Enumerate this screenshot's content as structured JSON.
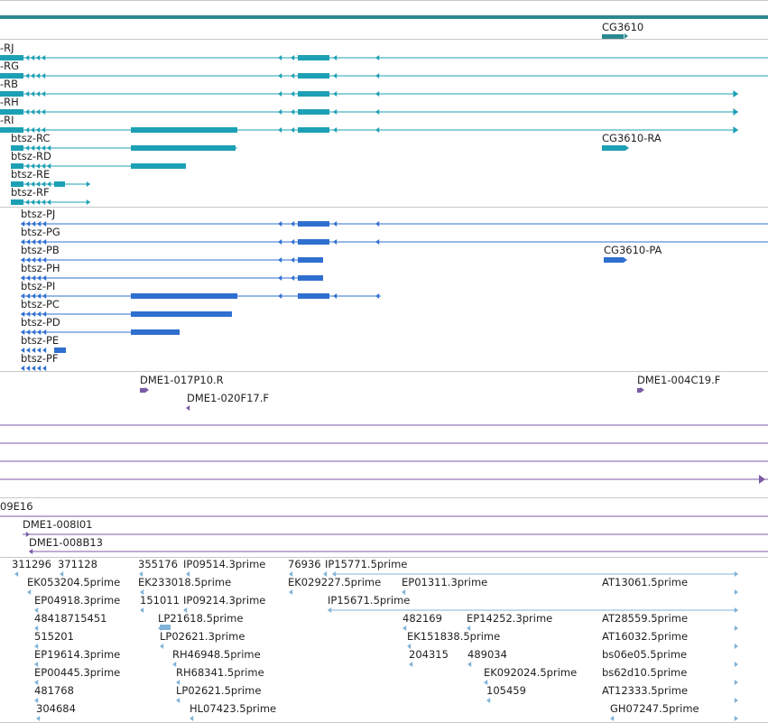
{
  "colors": {
    "teal": "#1ca0b4",
    "teal_dark": "#2a8890",
    "blue": "#2f6fd0",
    "purple": "#7b5aa6",
    "light_blue": "#7fb3d8",
    "separator": "#c8c8c8"
  },
  "top_track": {
    "label": "CG3610"
  },
  "btsz_r_track": {
    "rows": [
      {
        "label": "-RJ"
      },
      {
        "label": "-RG"
      },
      {
        "label": "-RB"
      },
      {
        "label": "-RH"
      },
      {
        "label": "-RI"
      },
      {
        "label": "btsz-RC"
      },
      {
        "label": "btsz-RD"
      },
      {
        "label": "btsz-RE"
      },
      {
        "label": "btsz-RF"
      }
    ],
    "extra_label": "CG3610-RA"
  },
  "btsz_p_track": {
    "rows": [
      {
        "label": "btsz-PJ"
      },
      {
        "label": "btsz-PG"
      },
      {
        "label": "btsz-PB"
      },
      {
        "label": "btsz-PH"
      },
      {
        "label": "btsz-PI"
      },
      {
        "label": "btsz-PC"
      },
      {
        "label": "btsz-PD"
      },
      {
        "label": "btsz-PE"
      },
      {
        "label": "btsz-PF"
      }
    ],
    "extra_label": "CG3610-PA"
  },
  "dme_track": {
    "labels": [
      "DME1-017P10.R",
      "DME1-020F17.F",
      "DME1-004C19.F"
    ]
  },
  "clone_track": {
    "labels": [
      "09E16",
      "DME1-008I01",
      "DME1-008B13"
    ]
  },
  "est_track": {
    "labels": [
      "311296",
      "371128",
      "355176",
      "IP09514.3prime",
      "76936",
      "IP15771.5prime",
      "EK053204.5prime",
      "EK233018.5prime",
      "EK029227.5prime",
      "EP01311.3prime",
      "AT13061.5prime",
      "EP04918.3prime",
      "151011",
      "IP09214.3prime",
      "IP15671.5prime",
      "48418715451",
      "LP21618.5prime",
      "482169",
      "EP14252.3prime",
      "AT28559.5prime",
      "515201",
      "LP02621.3prime",
      "EK151838.5prime",
      "AT16032.5prime",
      "EP19614.3prime",
      "RH46948.5prime",
      "204315",
      "489034",
      "bs06e05.5prime",
      "EP00445.3prime",
      "RH68341.5prime",
      "EK092024.5prime",
      "bs62d10.5prime",
      "481768",
      "LP02621.5prime",
      "105459",
      "AT12333.5prime",
      "304684",
      "HL07423.5prime",
      "GH07247.5prime"
    ]
  }
}
